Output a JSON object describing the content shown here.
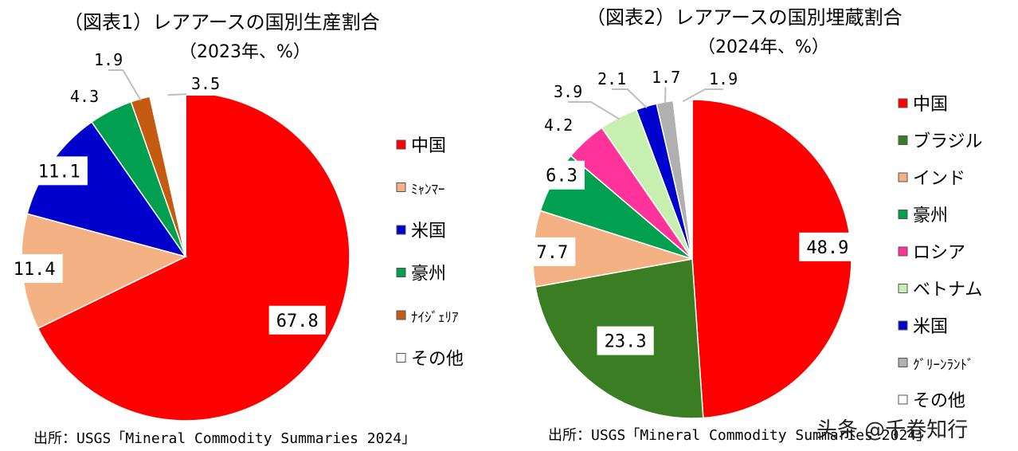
{
  "chart_data": [
    {
      "type": "pie",
      "title": "（図表1）レアアースの国別生産割合",
      "subtitle": "（2023年、%）",
      "categories": [
        "中国",
        "ﾐｬﾝﾏｰ",
        "米国",
        "豪州",
        "ﾅｲｼﾞｪﾘｱ",
        "その他"
      ],
      "values": [
        67.8,
        11.4,
        11.1,
        4.3,
        1.9,
        3.5
      ],
      "value_labels": [
        "67.8",
        "11.4",
        "11.1",
        "4.3",
        "1.9",
        "3.5"
      ],
      "colors": [
        "#ff0000",
        "#f4b183",
        "#0000cc",
        "#00a050",
        "#c55a11",
        "#ffffff"
      ],
      "order": "clockwise from top",
      "legend_position": "right",
      "source": "出所：USGS「Mineral Commodity Summaries 2024」"
    },
    {
      "type": "pie",
      "title": "（図表2）レアアースの国別埋蔵割合",
      "subtitle": "（2024年、%）",
      "categories": [
        "中国",
        "ブラジル",
        "インド",
        "豪州",
        "ロシア",
        "ベトナム",
        "米国",
        "ｸﾞﾘｰﾝﾗﾝﾄﾞ",
        "その他"
      ],
      "values": [
        48.9,
        23.3,
        7.7,
        6.3,
        4.2,
        3.9,
        2.1,
        1.7,
        1.9
      ],
      "value_labels": [
        "48.9",
        "23.3",
        "7.7",
        "6.3",
        "4.2",
        "3.9",
        "2.1",
        "1.7",
        "1.9"
      ],
      "colors": [
        "#ff0000",
        "#3a7d22",
        "#f4b183",
        "#00a050",
        "#ff3399",
        "#c6efb0",
        "#0000cc",
        "#b0b0b0",
        "#ffffff"
      ],
      "order": "clockwise from top",
      "legend_position": "right",
      "source": "出所：USGS「Mineral Commodity Summaries 2024」"
    }
  ],
  "watermark": "头条 @千卷知行"
}
